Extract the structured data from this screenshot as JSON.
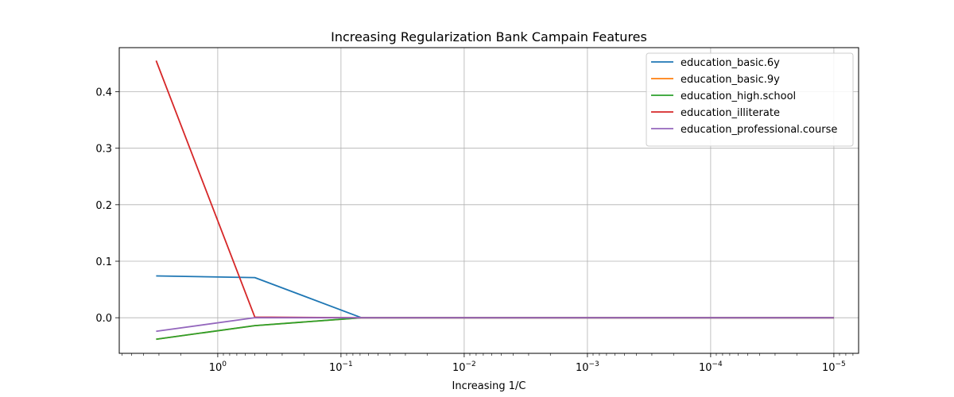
{
  "chart_data": {
    "type": "line",
    "title": "Increasing Regularization Bank Campain Features",
    "xlabel": "Increasing 1/C",
    "ylabel": "",
    "x_scale": "log",
    "x_axis_inverted": true,
    "xlim": [
      6.3,
      6.3e-06
    ],
    "ylim": [
      -0.063,
      0.478
    ],
    "grid": true,
    "legend_position": "upper right",
    "x": [
      3.1623,
      0.5,
      0.0681,
      1e-05
    ],
    "x_ticks": [
      {
        "value": 1,
        "base": "10",
        "exp": "0"
      },
      {
        "value": 0.1,
        "base": "10",
        "exp": "−1"
      },
      {
        "value": 0.01,
        "base": "10",
        "exp": "−2"
      },
      {
        "value": 0.001,
        "base": "10",
        "exp": "−3"
      },
      {
        "value": 0.0001,
        "base": "10",
        "exp": "−4"
      },
      {
        "value": 1e-05,
        "base": "10",
        "exp": "−5"
      }
    ],
    "y_ticks": [
      {
        "value": 0.0,
        "label": "0.0"
      },
      {
        "value": 0.1,
        "label": "0.1"
      },
      {
        "value": 0.2,
        "label": "0.2"
      },
      {
        "value": 0.3,
        "label": "0.3"
      },
      {
        "value": 0.4,
        "label": "0.4"
      }
    ],
    "series": [
      {
        "name": "education_basic.6y",
        "color": "#1f77b4",
        "values": [
          0.074,
          0.071,
          0.0,
          0.0
        ]
      },
      {
        "name": "education_basic.9y",
        "color": "#ff7f0e",
        "values": [
          -0.038,
          -0.014,
          0.0,
          0.0
        ]
      },
      {
        "name": "education_high.school",
        "color": "#2ca02c",
        "values": [
          -0.038,
          -0.014,
          0.0,
          0.0
        ]
      },
      {
        "name": "education_illiterate",
        "color": "#d62728",
        "values": [
          0.455,
          0.001,
          0.0,
          0.0
        ]
      },
      {
        "name": "education_professional.course",
        "color": "#9467bd",
        "values": [
          -0.024,
          0.0,
          0.0,
          0.0
        ]
      }
    ]
  }
}
